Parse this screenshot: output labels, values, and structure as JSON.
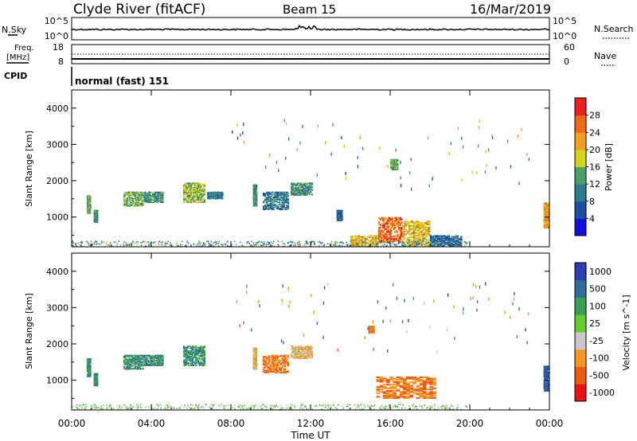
{
  "header": {
    "title": "Clyde River (fitACF)",
    "beam": "Beam 15",
    "date": "16/Mar/2019"
  },
  "panels": {
    "nsky": {
      "label": "N.Sky",
      "left_ticks": [
        "10^5",
        "10^0"
      ],
      "right_ticks": [
        "10^5",
        "10^0"
      ],
      "right_label": "N.Search"
    },
    "freq": {
      "label_line1": "Freq.",
      "label_line2": "[MHz]",
      "left_ticks": [
        "18",
        "8"
      ],
      "right_ticks": [
        "60",
        "0"
      ],
      "right_label": "Nave"
    },
    "cpid": {
      "label": "CPID",
      "value": "normal (fast) 151"
    }
  },
  "colors": {
    "power": [
      "#1010e0",
      "#1c4fa0",
      "#2d7c8f",
      "#47a068",
      "#d7d21a",
      "#f0a020",
      "#f06810",
      "#e82020"
    ],
    "velocity": [
      "#e81414",
      "#f05a0c",
      "#f59623",
      "#c8c8c8",
      "#62cc30",
      "#3aa050",
      "#2c6e9a",
      "#2a3fb0"
    ]
  },
  "chart_data": [
    {
      "type": "heatmap",
      "name": "power",
      "xlabel": "",
      "ylabel": "Slant Range [km]",
      "x_ticks": [
        "00:00",
        "04:00",
        "08:00",
        "12:00",
        "16:00",
        "20:00",
        "00:00"
      ],
      "x_range_hours": [
        0,
        24
      ],
      "ylim": [
        180,
        4500
      ],
      "y_ticks": [
        "1000",
        "2000",
        "3000",
        "4000"
      ],
      "colorbar": {
        "label": "Power [dB]",
        "ticks": [
          "4",
          "8",
          "12",
          "16",
          "20",
          "24",
          "28"
        ],
        "range": [
          0,
          32
        ]
      },
      "patches": [
        {
          "t": [
            0.75,
            0.95
          ],
          "r": [
            1100,
            1600
          ],
          "v": 14
        },
        {
          "t": [
            1.1,
            1.3
          ],
          "r": [
            850,
            1200
          ],
          "v": 12
        },
        {
          "t": [
            2.6,
            3.6
          ],
          "r": [
            1300,
            1700
          ],
          "v": 14
        },
        {
          "t": [
            3.6,
            4.6
          ],
          "r": [
            1400,
            1700
          ],
          "v": 12
        },
        {
          "t": [
            5.6,
            6.7
          ],
          "r": [
            1400,
            1950
          ],
          "v": 16
        },
        {
          "t": [
            6.8,
            7.6
          ],
          "r": [
            1500,
            1700
          ],
          "v": 10
        },
        {
          "t": [
            9.1,
            9.3
          ],
          "r": [
            1300,
            1900
          ],
          "v": 12
        },
        {
          "t": [
            9.6,
            10.9
          ],
          "r": [
            1200,
            1700
          ],
          "v": 10
        },
        {
          "t": [
            11.0,
            12.1
          ],
          "r": [
            1600,
            1950
          ],
          "v": 12
        },
        {
          "t": [
            13.3,
            13.6
          ],
          "r": [
            900,
            1200
          ],
          "v": 8
        },
        {
          "t": [
            14.0,
            15.4
          ],
          "r": [
            200,
            500
          ],
          "v": 20
        },
        {
          "t": [
            15.4,
            16.6
          ],
          "r": [
            300,
            1000
          ],
          "v": 26
        },
        {
          "t": [
            16.6,
            18.0
          ],
          "r": [
            200,
            900
          ],
          "v": 20
        },
        {
          "t": [
            18.0,
            19.6
          ],
          "r": [
            200,
            500
          ],
          "v": 8
        },
        {
          "t": [
            16.0,
            16.4
          ],
          "r": [
            2300,
            2600
          ],
          "v": 14
        },
        {
          "t": [
            23.7,
            23.95
          ],
          "r": [
            700,
            1400
          ],
          "v": 22
        }
      ]
    },
    {
      "type": "heatmap",
      "name": "velocity",
      "xlabel": "Time UT",
      "ylabel": "Slant Range [km]",
      "x_ticks": [
        "00:00",
        "04:00",
        "08:00",
        "12:00",
        "16:00",
        "20:00",
        "00:00"
      ],
      "x_range_hours": [
        0,
        24
      ],
      "ylim": [
        180,
        4500
      ],
      "y_ticks": [
        "1000",
        "2000",
        "3000",
        "4000"
      ],
      "colorbar": {
        "label": "Velocity [m s^-1]",
        "ticks": [
          "-1000",
          "-500",
          "-100",
          "-25",
          "25",
          "100",
          "500",
          "1000"
        ]
      },
      "patches": [
        {
          "t": [
            0.75,
            0.95
          ],
          "r": [
            1100,
            1600
          ],
          "v": 100
        },
        {
          "t": [
            1.1,
            1.3
          ],
          "r": [
            850,
            1200
          ],
          "v": 100
        },
        {
          "t": [
            2.6,
            3.6
          ],
          "r": [
            1300,
            1700
          ],
          "v": 100
        },
        {
          "t": [
            3.6,
            4.6
          ],
          "r": [
            1400,
            1700
          ],
          "v": 100
        },
        {
          "t": [
            5.6,
            6.7
          ],
          "r": [
            1400,
            1950
          ],
          "v": 100
        },
        {
          "t": [
            9.1,
            9.3
          ],
          "r": [
            1300,
            1900
          ],
          "v": -100
        },
        {
          "t": [
            9.6,
            10.9
          ],
          "r": [
            1200,
            1700
          ],
          "v": -500
        },
        {
          "t": [
            11.0,
            12.1
          ],
          "r": [
            1600,
            1950
          ],
          "v": -100
        },
        {
          "t": [
            14.9,
            15.2
          ],
          "r": [
            2300,
            2500
          ],
          "v": -500
        },
        {
          "t": [
            15.3,
            18.3
          ],
          "r": [
            500,
            1100
          ],
          "v": -500
        },
        {
          "t": [
            23.7,
            23.95
          ],
          "r": [
            700,
            1400
          ],
          "v": 500
        }
      ]
    }
  ]
}
